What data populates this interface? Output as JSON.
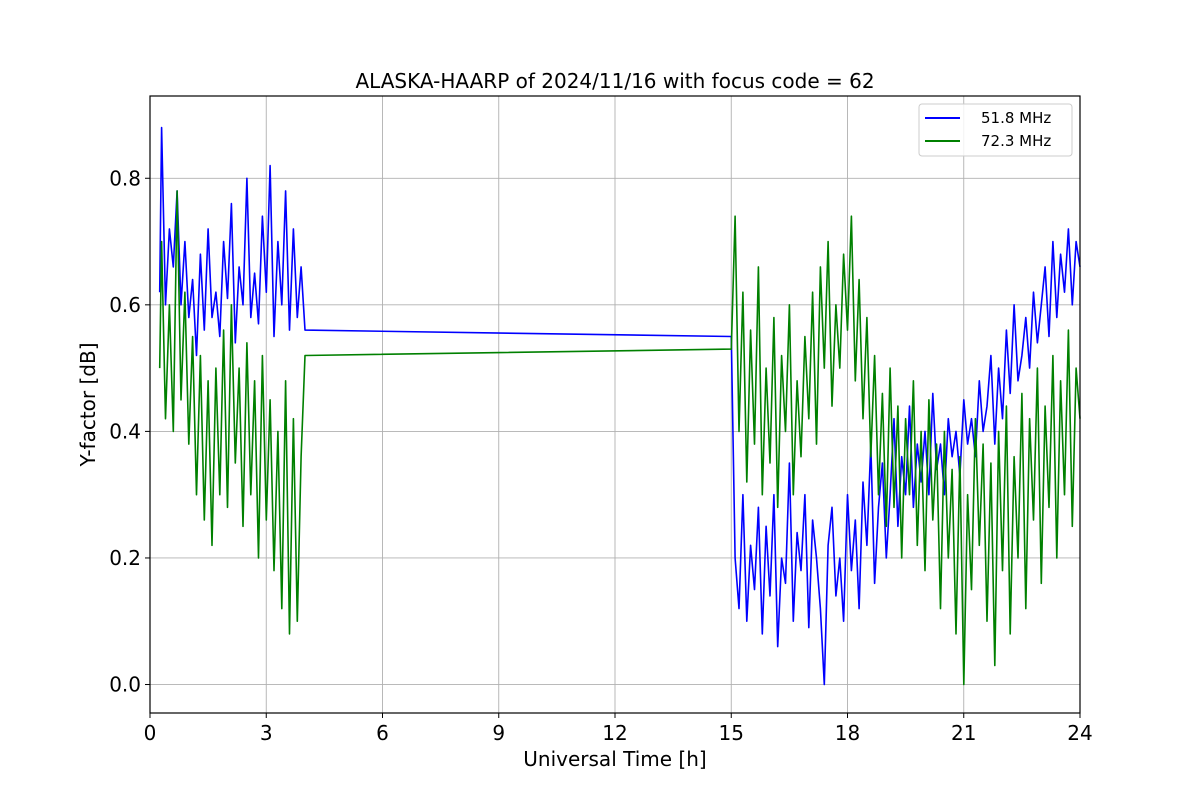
{
  "chart_data": {
    "type": "line",
    "title": "ALASKA-HAARP of 2024/11/16 with focus code = 62",
    "xlabel": "Universal Time [h]",
    "ylabel": "Y-factor [dB]",
    "xlim": [
      0,
      24
    ],
    "ylim": [
      -0.045,
      0.93
    ],
    "xticks": [
      0,
      3,
      6,
      9,
      12,
      15,
      18,
      21,
      24
    ],
    "yticks": [
      0.0,
      0.2,
      0.4,
      0.6,
      0.8
    ],
    "xtick_labels": [
      "0",
      "3",
      "6",
      "9",
      "12",
      "15",
      "18",
      "21",
      "24"
    ],
    "ytick_labels": [
      "0.0",
      "0.2",
      "0.4",
      "0.6",
      "0.8"
    ],
    "grid": true,
    "legend_position": "top-right",
    "series": [
      {
        "name": "51.8 MHz",
        "color": "#0000ff",
        "x": [
          0.25,
          0.3,
          0.4,
          0.5,
          0.6,
          0.7,
          0.8,
          0.9,
          1.0,
          1.1,
          1.2,
          1.3,
          1.4,
          1.5,
          1.6,
          1.7,
          1.8,
          1.9,
          2.0,
          2.1,
          2.2,
          2.3,
          2.4,
          2.5,
          2.6,
          2.7,
          2.8,
          2.9,
          3.0,
          3.1,
          3.2,
          3.3,
          3.4,
          3.5,
          3.6,
          3.7,
          3.8,
          3.9,
          4.0,
          15.0,
          15.1,
          15.2,
          15.3,
          15.4,
          15.5,
          15.6,
          15.7,
          15.8,
          15.9,
          16.0,
          16.1,
          16.2,
          16.3,
          16.4,
          16.5,
          16.6,
          16.7,
          16.8,
          16.9,
          17.0,
          17.1,
          17.2,
          17.3,
          17.4,
          17.5,
          17.6,
          17.7,
          17.8,
          17.9,
          18.0,
          18.1,
          18.2,
          18.3,
          18.4,
          18.5,
          18.6,
          18.7,
          18.8,
          18.9,
          19.0,
          19.1,
          19.2,
          19.3,
          19.4,
          19.5,
          19.6,
          19.7,
          19.8,
          19.9,
          20.0,
          20.1,
          20.2,
          20.3,
          20.4,
          20.5,
          20.6,
          20.7,
          20.8,
          20.9,
          21.0,
          21.1,
          21.2,
          21.3,
          21.4,
          21.5,
          21.6,
          21.7,
          21.8,
          21.9,
          22.0,
          22.1,
          22.2,
          22.3,
          22.4,
          22.5,
          22.6,
          22.7,
          22.8,
          22.9,
          23.0,
          23.1,
          23.2,
          23.3,
          23.4,
          23.5,
          23.6,
          23.7,
          23.8,
          23.9,
          24.0
        ],
        "y": [
          0.62,
          0.88,
          0.6,
          0.72,
          0.66,
          0.78,
          0.6,
          0.7,
          0.58,
          0.64,
          0.52,
          0.68,
          0.56,
          0.72,
          0.58,
          0.62,
          0.55,
          0.7,
          0.61,
          0.76,
          0.54,
          0.66,
          0.6,
          0.8,
          0.58,
          0.65,
          0.57,
          0.74,
          0.62,
          0.82,
          0.55,
          0.7,
          0.6,
          0.78,
          0.56,
          0.72,
          0.58,
          0.66,
          0.56,
          0.55,
          0.2,
          0.12,
          0.3,
          0.1,
          0.22,
          0.15,
          0.28,
          0.08,
          0.25,
          0.14,
          0.3,
          0.06,
          0.2,
          0.16,
          0.35,
          0.1,
          0.24,
          0.18,
          0.3,
          0.09,
          0.26,
          0.2,
          0.12,
          0.0,
          0.22,
          0.28,
          0.14,
          0.2,
          0.1,
          0.3,
          0.18,
          0.26,
          0.12,
          0.32,
          0.22,
          0.38,
          0.16,
          0.28,
          0.35,
          0.2,
          0.3,
          0.42,
          0.25,
          0.36,
          0.3,
          0.44,
          0.28,
          0.38,
          0.32,
          0.4,
          0.3,
          0.46,
          0.34,
          0.38,
          0.3,
          0.42,
          0.36,
          0.4,
          0.33,
          0.45,
          0.38,
          0.42,
          0.36,
          0.48,
          0.4,
          0.44,
          0.52,
          0.38,
          0.5,
          0.42,
          0.56,
          0.46,
          0.6,
          0.48,
          0.52,
          0.58,
          0.5,
          0.62,
          0.54,
          0.6,
          0.66,
          0.55,
          0.7,
          0.58,
          0.68,
          0.62,
          0.72,
          0.6,
          0.7,
          0.66
        ]
      },
      {
        "name": "72.3 MHz",
        "color": "#008000",
        "x": [
          0.25,
          0.3,
          0.4,
          0.5,
          0.6,
          0.7,
          0.8,
          0.9,
          1.0,
          1.1,
          1.2,
          1.3,
          1.4,
          1.5,
          1.6,
          1.7,
          1.8,
          1.9,
          2.0,
          2.1,
          2.2,
          2.3,
          2.4,
          2.5,
          2.6,
          2.7,
          2.8,
          2.9,
          3.0,
          3.1,
          3.2,
          3.3,
          3.4,
          3.5,
          3.6,
          3.7,
          3.8,
          3.9,
          4.0,
          15.0,
          15.1,
          15.2,
          15.3,
          15.4,
          15.5,
          15.6,
          15.7,
          15.8,
          15.9,
          16.0,
          16.1,
          16.2,
          16.3,
          16.4,
          16.5,
          16.6,
          16.7,
          16.8,
          16.9,
          17.0,
          17.1,
          17.2,
          17.3,
          17.4,
          17.5,
          17.6,
          17.7,
          17.8,
          17.9,
          18.0,
          18.1,
          18.2,
          18.3,
          18.4,
          18.5,
          18.6,
          18.7,
          18.8,
          18.9,
          19.0,
          19.1,
          19.2,
          19.3,
          19.4,
          19.5,
          19.6,
          19.7,
          19.8,
          19.9,
          20.0,
          20.1,
          20.2,
          20.3,
          20.4,
          20.5,
          20.6,
          20.7,
          20.8,
          20.9,
          21.0,
          21.1,
          21.2,
          21.3,
          21.4,
          21.5,
          21.6,
          21.7,
          21.8,
          21.9,
          22.0,
          22.1,
          22.2,
          22.3,
          22.4,
          22.5,
          22.6,
          22.7,
          22.8,
          22.9,
          23.0,
          23.1,
          23.2,
          23.3,
          23.4,
          23.5,
          23.6,
          23.7,
          23.8,
          23.9,
          24.0
        ],
        "y": [
          0.5,
          0.7,
          0.42,
          0.6,
          0.4,
          0.78,
          0.45,
          0.62,
          0.38,
          0.55,
          0.3,
          0.52,
          0.26,
          0.48,
          0.22,
          0.5,
          0.3,
          0.56,
          0.28,
          0.6,
          0.35,
          0.5,
          0.25,
          0.54,
          0.3,
          0.48,
          0.2,
          0.52,
          0.26,
          0.45,
          0.18,
          0.4,
          0.12,
          0.48,
          0.08,
          0.42,
          0.1,
          0.36,
          0.52,
          0.53,
          0.74,
          0.4,
          0.62,
          0.32,
          0.56,
          0.38,
          0.66,
          0.3,
          0.5,
          0.35,
          0.58,
          0.28,
          0.52,
          0.4,
          0.6,
          0.3,
          0.48,
          0.36,
          0.55,
          0.42,
          0.62,
          0.38,
          0.66,
          0.5,
          0.7,
          0.44,
          0.6,
          0.5,
          0.68,
          0.56,
          0.74,
          0.48,
          0.64,
          0.42,
          0.58,
          0.36,
          0.52,
          0.3,
          0.46,
          0.25,
          0.5,
          0.28,
          0.44,
          0.2,
          0.42,
          0.3,
          0.48,
          0.22,
          0.4,
          0.18,
          0.45,
          0.26,
          0.38,
          0.12,
          0.4,
          0.2,
          0.34,
          0.08,
          0.36,
          0.0,
          0.3,
          0.15,
          0.42,
          0.22,
          0.38,
          0.1,
          0.35,
          0.03,
          0.4,
          0.18,
          0.44,
          0.08,
          0.36,
          0.2,
          0.46,
          0.12,
          0.42,
          0.26,
          0.5,
          0.16,
          0.44,
          0.28,
          0.52,
          0.2,
          0.48,
          0.3,
          0.56,
          0.25,
          0.5,
          0.42
        ]
      }
    ]
  }
}
